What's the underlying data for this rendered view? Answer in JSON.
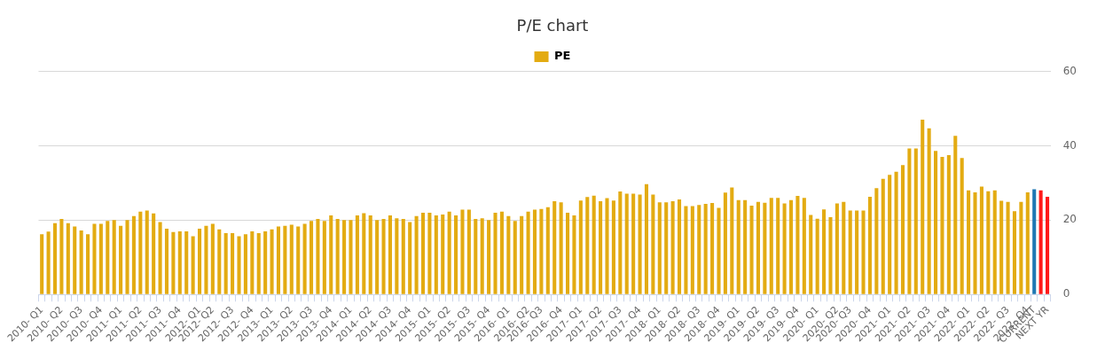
{
  "chart_data": {
    "type": "bar",
    "title": "P/E chart",
    "legend": "top",
    "grid": "y",
    "ylim": [
      0,
      60
    ],
    "yticks": [
      0,
      20,
      40,
      60
    ],
    "categories": [
      "2010- Q1",
      null,
      null,
      "2010- Q2",
      null,
      null,
      "2010- Q3",
      null,
      null,
      "2010- Q4",
      null,
      null,
      "2011- Q1",
      null,
      null,
      "2011- Q2",
      null,
      null,
      "2011- Q3",
      null,
      null,
      "2011- Q4",
      null,
      null,
      "2012- Q1",
      null,
      "2012- Q2",
      null,
      null,
      "2012- Q3",
      null,
      null,
      "2012- Q4",
      null,
      null,
      "2013- Q1",
      null,
      null,
      "2013- Q2",
      null,
      null,
      "2013- Q3",
      null,
      null,
      "2013- Q4",
      null,
      null,
      "2014- Q1",
      null,
      null,
      "2014- Q2",
      null,
      null,
      "2014- Q3",
      null,
      null,
      "2014- Q4",
      null,
      null,
      "2015- Q1",
      null,
      null,
      "2015- Q2",
      null,
      null,
      "2015- Q3",
      null,
      null,
      "2015- Q4",
      null,
      null,
      "2016- Q1",
      null,
      null,
      "2016- Q2",
      null,
      "2016- Q3",
      null,
      null,
      "2016- Q4",
      null,
      null,
      "2017- Q1",
      null,
      null,
      "2017- Q2",
      null,
      null,
      "2017- Q3",
      null,
      null,
      "2017- Q4",
      null,
      null,
      "2018- Q1",
      null,
      null,
      "2018- Q2",
      null,
      null,
      "2018- Q3",
      null,
      null,
      "2018- Q4",
      null,
      null,
      "2019- Q1",
      null,
      null,
      "2019- Q2",
      null,
      null,
      "2019- Q3",
      null,
      null,
      "2019- Q4",
      null,
      null,
      "2020- Q1",
      null,
      null,
      "2020- Q2",
      null,
      "2020- Q3",
      null,
      null,
      "2020- Q4",
      null,
      null,
      "2021- Q1",
      null,
      null,
      "2021- Q2",
      null,
      null,
      "2021- Q3",
      null,
      null,
      "2021- Q4",
      null,
      null,
      "2022- Q1",
      null,
      null,
      "2022- Q2",
      null,
      null,
      "2022- Q3",
      null,
      null,
      "2022- Q4",
      "CURRENT",
      null,
      "NEXT YR"
    ],
    "series": [
      {
        "name": "PE",
        "color": "#e3ab12",
        "values": [
          16.2,
          16.9,
          19.2,
          20.3,
          19.2,
          18.3,
          17.2,
          16.2,
          19.0,
          19.0,
          19.8,
          20.0,
          18.5,
          20.0,
          21.1,
          22.3,
          22.6,
          21.8,
          19.5,
          17.7,
          16.8,
          17.0,
          17.0,
          15.7,
          17.7,
          18.5,
          19.0,
          17.5,
          16.5,
          16.5,
          15.7,
          16.2,
          17.0,
          16.5,
          17.0,
          17.5,
          18.3,
          18.5,
          18.8,
          18.3,
          19.0,
          19.8,
          20.3,
          19.8,
          21.3,
          20.3,
          20.0,
          20.0,
          21.3,
          21.9,
          21.3,
          20.0,
          20.3,
          21.3,
          20.5,
          20.3,
          19.5,
          21.1,
          22.0,
          22.0,
          21.3,
          21.5,
          22.3,
          21.3,
          22.8,
          22.8,
          20.3,
          20.5,
          20.0,
          22.0,
          22.3,
          21.1,
          19.8,
          21.1,
          22.3,
          22.8,
          23.0,
          23.5,
          25.1,
          24.8,
          22.0,
          21.3,
          25.3,
          26.2,
          26.6,
          25.1,
          25.9,
          25.3,
          27.7,
          27.1,
          27.1,
          26.9,
          29.7,
          26.9,
          24.8,
          24.8,
          25.1,
          25.6,
          23.8,
          23.8,
          24.1,
          24.4,
          24.6,
          23.3,
          27.4,
          28.8,
          25.4,
          25.4,
          23.9,
          24.9,
          24.7,
          26.0,
          26.0,
          24.5,
          25.4,
          26.5,
          26.0,
          21.4,
          20.4,
          22.9,
          20.8,
          24.5,
          24.9,
          22.6,
          22.6,
          22.6,
          26.3,
          28.6,
          31.1,
          32.2,
          33.0,
          34.8,
          39.3,
          39.3,
          47.0,
          44.7,
          38.6,
          37.0,
          37.5,
          42.7,
          36.7,
          28.0,
          27.5,
          29.0,
          27.8,
          28.0,
          25.2,
          24.9,
          22.4,
          24.9,
          27.5,
          28.3,
          28.0,
          26.3
        ],
        "colors": [
          "#e3ab12",
          "#e3ab12",
          "#e3ab12",
          "#e3ab12",
          "#e3ab12",
          "#e3ab12",
          "#e3ab12",
          "#e3ab12",
          "#e3ab12",
          "#e3ab12",
          "#e3ab12",
          "#e3ab12",
          "#e3ab12",
          "#e3ab12",
          "#e3ab12",
          "#e3ab12",
          "#e3ab12",
          "#e3ab12",
          "#e3ab12",
          "#e3ab12",
          "#e3ab12",
          "#e3ab12",
          "#e3ab12",
          "#e3ab12",
          "#e3ab12",
          "#e3ab12",
          "#e3ab12",
          "#e3ab12",
          "#e3ab12",
          "#e3ab12",
          "#e3ab12",
          "#e3ab12",
          "#e3ab12",
          "#e3ab12",
          "#e3ab12",
          "#e3ab12",
          "#e3ab12",
          "#e3ab12",
          "#e3ab12",
          "#e3ab12",
          "#e3ab12",
          "#e3ab12",
          "#e3ab12",
          "#e3ab12",
          "#e3ab12",
          "#e3ab12",
          "#e3ab12",
          "#e3ab12",
          "#e3ab12",
          "#e3ab12",
          "#e3ab12",
          "#e3ab12",
          "#e3ab12",
          "#e3ab12",
          "#e3ab12",
          "#e3ab12",
          "#e3ab12",
          "#e3ab12",
          "#e3ab12",
          "#e3ab12",
          "#e3ab12",
          "#e3ab12",
          "#e3ab12",
          "#e3ab12",
          "#e3ab12",
          "#e3ab12",
          "#e3ab12",
          "#e3ab12",
          "#e3ab12",
          "#e3ab12",
          "#e3ab12",
          "#e3ab12",
          "#e3ab12",
          "#e3ab12",
          "#e3ab12",
          "#e3ab12",
          "#e3ab12",
          "#e3ab12",
          "#e3ab12",
          "#e3ab12",
          "#e3ab12",
          "#e3ab12",
          "#e3ab12",
          "#e3ab12",
          "#e3ab12",
          "#e3ab12",
          "#e3ab12",
          "#e3ab12",
          "#e3ab12",
          "#e3ab12",
          "#e3ab12",
          "#e3ab12",
          "#e3ab12",
          "#e3ab12",
          "#e3ab12",
          "#e3ab12",
          "#e3ab12",
          "#e3ab12",
          "#e3ab12",
          "#e3ab12",
          "#e3ab12",
          "#e3ab12",
          "#e3ab12",
          "#e3ab12",
          "#e3ab12",
          "#e3ab12",
          "#e3ab12",
          "#e3ab12",
          "#e3ab12",
          "#e3ab12",
          "#e3ab12",
          "#e3ab12",
          "#e3ab12",
          "#e3ab12",
          "#e3ab12",
          "#e3ab12",
          "#e3ab12",
          "#e3ab12",
          "#e3ab12",
          "#e3ab12",
          "#e3ab12",
          "#e3ab12",
          "#e3ab12",
          "#e3ab12",
          "#e3ab12",
          "#e3ab12",
          "#e3ab12",
          "#e3ab12",
          "#e3ab12",
          "#e3ab12",
          "#e3ab12",
          "#e3ab12",
          "#e3ab12",
          "#e3ab12",
          "#e3ab12",
          "#e3ab12",
          "#e3ab12",
          "#e3ab12",
          "#e3ab12",
          "#e3ab12",
          "#e3ab12",
          "#e3ab12",
          "#e3ab12",
          "#e3ab12",
          "#e3ab12",
          "#e3ab12",
          "#e3ab12",
          "#e3ab12",
          "#e3ab12",
          "#e3ab12",
          "#e3ab12",
          "#1f78b4",
          "#ff1a1a",
          "#ff1a1a"
        ]
      }
    ]
  }
}
